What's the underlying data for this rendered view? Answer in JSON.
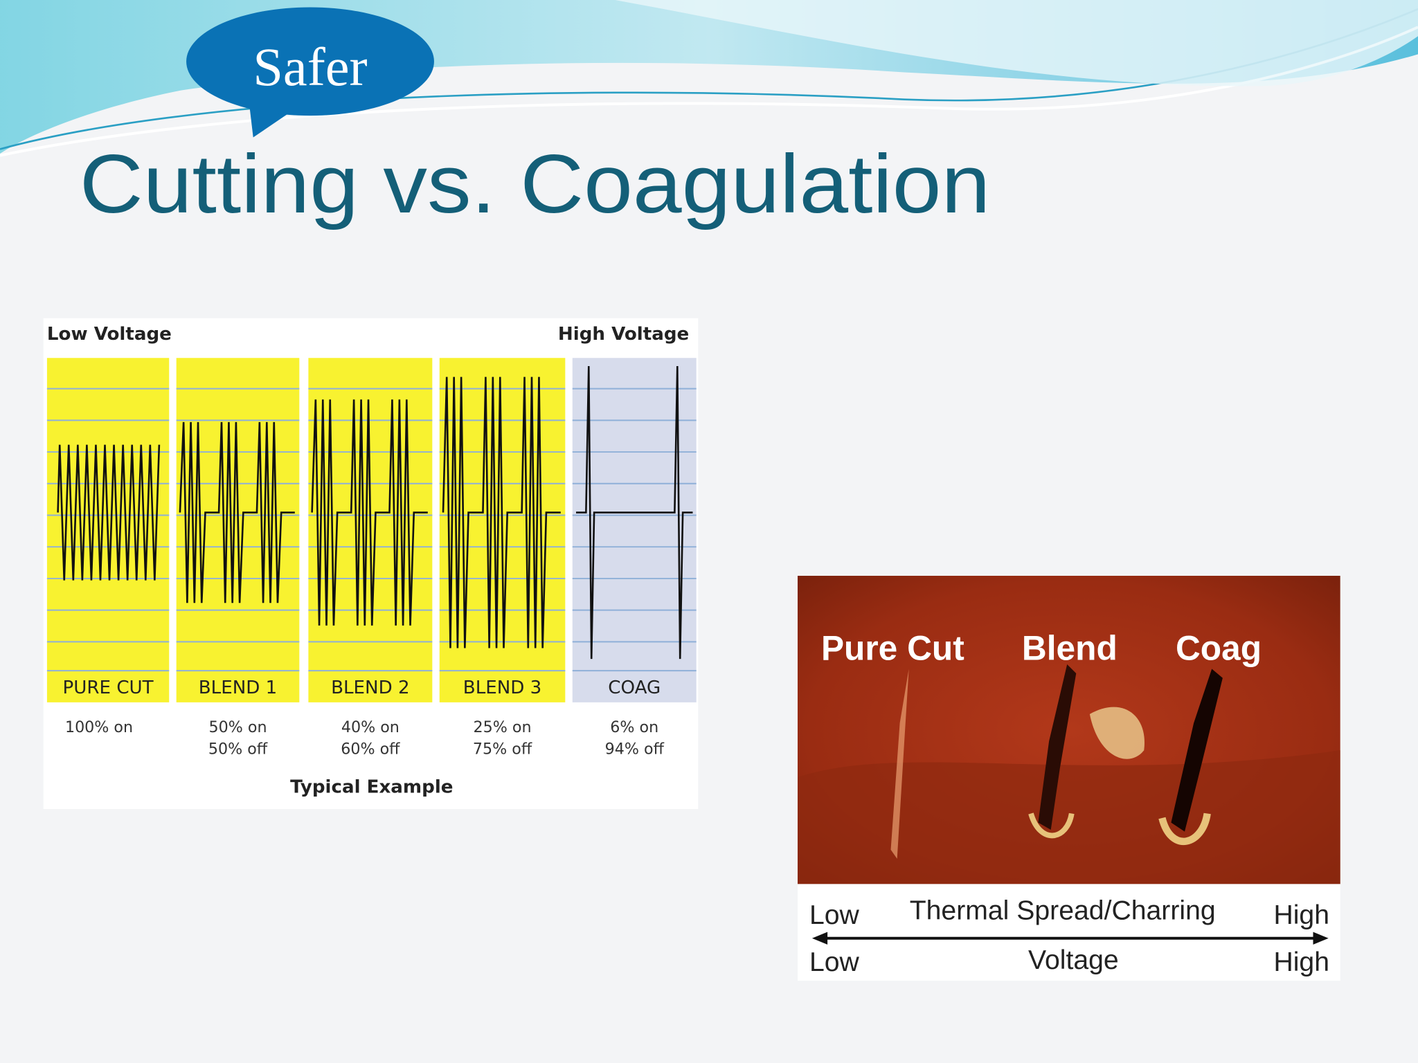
{
  "slide": {
    "callout": "Safer",
    "title": "Cutting vs. Coagulation"
  },
  "waveform_figure": {
    "left_label": "Low Voltage",
    "right_label": "High Voltage",
    "panels": [
      {
        "name": "PURE CUT",
        "duty": [
          "100% on"
        ]
      },
      {
        "name": "BLEND 1",
        "duty": [
          "50% on",
          "50% off"
        ]
      },
      {
        "name": "BLEND 2",
        "duty": [
          "40% on",
          "60% off"
        ]
      },
      {
        "name": "BLEND 3",
        "duty": [
          "25% on",
          "75% off"
        ]
      },
      {
        "name": "COAG",
        "duty": [
          "6% on",
          "94% off"
        ]
      }
    ],
    "caption": "Typical Example"
  },
  "photo_figure": {
    "cut_labels": [
      "Pure Cut",
      "Blend",
      "Coag"
    ],
    "scale_rows": [
      {
        "left": "Low",
        "middle": "Thermal Spread/Charring",
        "right": "High"
      },
      {
        "left": "Low",
        "middle": "Voltage",
        "right": "High"
      }
    ]
  }
}
